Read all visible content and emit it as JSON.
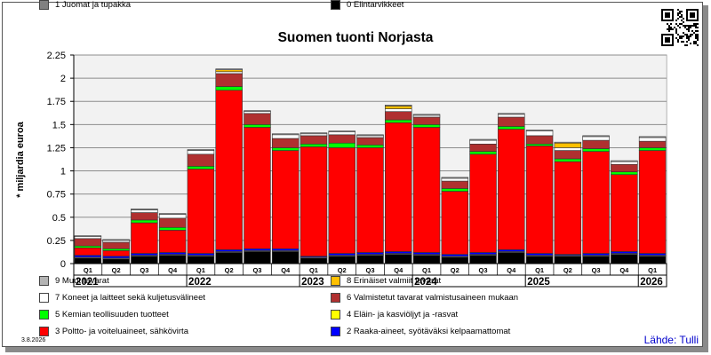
{
  "chart_data": {
    "type": "bar",
    "stacked": true,
    "title": "Suomen tuonti Norjasta",
    "ylabel": "* miljardia euroa",
    "ylim": [
      0,
      2.25
    ],
    "yticks": [
      "0",
      "0.25",
      "0.5",
      "0.75",
      "1",
      "1.25",
      "1.5",
      "1.75",
      "2",
      "2.25"
    ],
    "grid": true,
    "legend_position": "bottom",
    "categories": [
      "Q1",
      "Q2",
      "Q3",
      "Q4",
      "Q1",
      "Q2",
      "Q3",
      "Q4",
      "Q1",
      "Q2",
      "Q3",
      "Q4",
      "Q1",
      "Q2",
      "Q3",
      "Q4",
      "Q1",
      "Q2",
      "Q3",
      "Q4",
      "Q1"
    ],
    "years": [
      {
        "label": "2021",
        "start": 0,
        "count": 4
      },
      {
        "label": "2022",
        "start": 4,
        "count": 4
      },
      {
        "label": "2023",
        "start": 8,
        "count": 4
      },
      {
        "label": "2024",
        "start": 12,
        "count": 4
      },
      {
        "label": "2025",
        "start": 16,
        "count": 4
      },
      {
        "label": "2026",
        "start": 20,
        "count": 1
      }
    ],
    "series": [
      {
        "code": "0",
        "name": "0 Elintarvikkeet",
        "color": "#000000",
        "values": [
          0.06,
          0.05,
          0.08,
          0.09,
          0.08,
          0.12,
          0.13,
          0.13,
          0.06,
          0.08,
          0.09,
          0.1,
          0.09,
          0.07,
          0.09,
          0.12,
          0.08,
          0.08,
          0.08,
          0.1,
          0.08
        ]
      },
      {
        "code": "1",
        "name": "1 Juomat ja tupakka",
        "color": "#808080",
        "values": [
          0.01,
          0.01,
          0.01,
          0.01,
          0.01,
          0.01,
          0.01,
          0.01,
          0.01,
          0.01,
          0.01,
          0.01,
          0.01,
          0.01,
          0.01,
          0.01,
          0.01,
          0.01,
          0.01,
          0.01,
          0.01
        ]
      },
      {
        "code": "2",
        "name": "2 Raaka-aineet, syötäväksi kelpaamattomat",
        "color": "#0000ff",
        "values": [
          0.02,
          0.02,
          0.02,
          0.02,
          0.02,
          0.02,
          0.02,
          0.02,
          0.01,
          0.02,
          0.02,
          0.02,
          0.02,
          0.02,
          0.02,
          0.02,
          0.02,
          0.01,
          0.02,
          0.02,
          0.02
        ]
      },
      {
        "code": "3",
        "name": "3 Poltto- ja voiteluaineet, sähkövirta",
        "color": "#ff0000",
        "values": [
          0.08,
          0.06,
          0.33,
          0.24,
          0.91,
          1.72,
          1.31,
          1.06,
          1.18,
          1.14,
          1.13,
          1.39,
          1.35,
          0.68,
          1.06,
          1.3,
          1.16,
          1.0,
          1.1,
          0.83,
          1.11
        ]
      },
      {
        "code": "4",
        "name": "4 Eläin- ja kasviöljyt ja -rasvat",
        "color": "#ffff00",
        "values": [
          0.0,
          0.0,
          0.0,
          0.0,
          0.0,
          0.0,
          0.0,
          0.0,
          0.0,
          0.0,
          0.0,
          0.0,
          0.0,
          0.0,
          0.0,
          0.0,
          0.0,
          0.0,
          0.0,
          0.0,
          0.0
        ]
      },
      {
        "code": "5",
        "name": "5 Kemian teollisuuden tuotteet",
        "color": "#00ff00",
        "values": [
          0.02,
          0.02,
          0.03,
          0.03,
          0.03,
          0.04,
          0.03,
          0.03,
          0.03,
          0.05,
          0.03,
          0.03,
          0.03,
          0.03,
          0.03,
          0.03,
          0.02,
          0.03,
          0.03,
          0.03,
          0.03
        ]
      },
      {
        "code": "6",
        "name": "6 Valmistetut tavarat valmistusaineen mukaan",
        "color": "#b03030",
        "values": [
          0.08,
          0.07,
          0.08,
          0.1,
          0.13,
          0.14,
          0.12,
          0.1,
          0.09,
          0.09,
          0.08,
          0.09,
          0.08,
          0.08,
          0.08,
          0.1,
          0.09,
          0.09,
          0.09,
          0.08,
          0.07
        ]
      },
      {
        "code": "7",
        "name": "7 Koneet ja laitteet sekä kuljetusvälineet",
        "color": "#ffffff",
        "values": [
          0.02,
          0.02,
          0.03,
          0.04,
          0.04,
          0.02,
          0.02,
          0.04,
          0.02,
          0.03,
          0.02,
          0.03,
          0.02,
          0.03,
          0.04,
          0.03,
          0.05,
          0.03,
          0.04,
          0.03,
          0.04
        ]
      },
      {
        "code": "8",
        "name": "8 Erinäiset valmiit tavarat",
        "color": "#ffc000",
        "values": [
          0.0,
          0.0,
          0.0,
          0.0,
          0.0,
          0.02,
          0.0,
          0.0,
          0.0,
          0.0,
          0.0,
          0.03,
          0.0,
          0.0,
          0.0,
          0.0,
          0.0,
          0.05,
          0.0,
          0.0,
          0.0
        ]
      },
      {
        "code": "9",
        "name": "9 Muut tavarat",
        "color": "#b4b4b4",
        "values": [
          0.01,
          0.01,
          0.01,
          0.01,
          0.01,
          0.01,
          0.01,
          0.01,
          0.01,
          0.01,
          0.01,
          0.01,
          0.01,
          0.01,
          0.01,
          0.01,
          0.01,
          0.01,
          0.01,
          0.01,
          0.01
        ]
      }
    ],
    "legend_order": [
      "9",
      "8",
      "7",
      "6",
      "5",
      "4",
      "3",
      "2",
      "1",
      "0"
    ]
  },
  "footer": {
    "source": "Lähde: Tulli",
    "date": "3.8.2026"
  },
  "icons": {
    "qr": "qr-code-icon"
  }
}
